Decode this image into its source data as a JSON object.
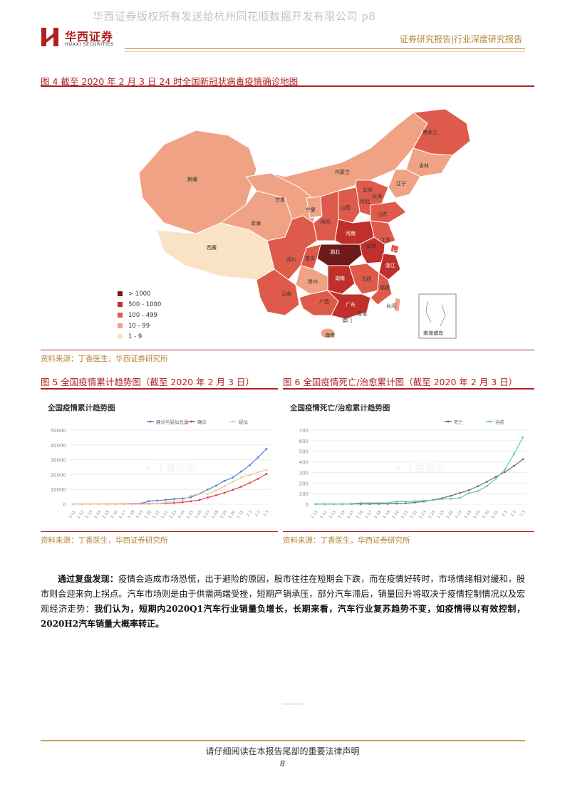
{
  "watermark": "华西证券版权所有发送给杭州同花顺数据开发有限公司 p8",
  "brand": {
    "name_cn": "华西证券",
    "name_en": "HUAXI SECURITIES",
    "color": "#b02020"
  },
  "header": {
    "right_text": "证券研究报告|行业深度研究报告"
  },
  "figure4": {
    "title": "图 4 截至 2020 年 2 月 3 日 24 时全国新冠状病毒疫情确诊地图",
    "source": "资料来源：丁香医生，华西证券研究所",
    "legend": [
      {
        "label": "> 1000",
        "color": "#6e1a1a"
      },
      {
        "label": "500 - 1000",
        "color": "#c0302b"
      },
      {
        "label": "100 - 499",
        "color": "#de5a4a"
      },
      {
        "label": "10 - 99",
        "color": "#f0a285"
      },
      {
        "label": "1 - 9",
        "color": "#fae3c4"
      }
    ],
    "provinces": {
      "heilongjiang": "黑龙江",
      "jilin": "吉林",
      "liaoning": "辽宁",
      "neimenggu": "内蒙古",
      "beijing": "北京",
      "tianjin": "天津",
      "hebei": "河北",
      "shanxi": "山西",
      "shandong": "山东",
      "xinjiang": "新疆",
      "gansu": "甘肃",
      "ningxia": "宁夏",
      "shaanxi": "陕西",
      "qinghai": "青海",
      "xizang": "西藏",
      "sichuan": "四川",
      "chongqing": "重庆",
      "hubei": "湖北",
      "henan": "河南",
      "anhui": "安徽",
      "jiangsu": "江苏",
      "shanghai": "上海",
      "zhejiang": "浙江",
      "hunan": "湖南",
      "jiangxi": "江西",
      "fujian": "福建",
      "guizhou": "贵州",
      "yunnan": "云南",
      "guangxi": "广西",
      "guangdong": "广东",
      "taiwan": "台湾",
      "xianggang": "香港",
      "aomen": "澳门",
      "hainan": "海南",
      "nanhai": "南海诸岛"
    }
  },
  "figure5": {
    "title": "图 5 全国疫情累计趋势图（截至 2020 年 2 月 3 日）",
    "source": "资料来源：丁香医生，华西证券研究所",
    "watermark_label": "丁香医生"
  },
  "figure6": {
    "title": "图 6 全国疫情死亡/治愈累计图（截至 2020 年 2 月 3 日）",
    "source": "资料来源：丁香医生，华西证券研究所",
    "watermark_label": "丁香医生"
  },
  "chart_data": [
    {
      "type": "line",
      "title": "全国疫情累计趋势图",
      "categories": [
        "1-11",
        "1-13",
        "1-15",
        "1-17",
        "1-19",
        "1-21",
        "1-23",
        "1-25",
        "1-27",
        "1-29",
        "1-31",
        "2-2"
      ],
      "x": [
        "1-11",
        "1-12",
        "1-13",
        "1-14",
        "1-15",
        "1-16",
        "1-17",
        "1-18",
        "1-19",
        "1-20",
        "1-21",
        "1-22",
        "1-23",
        "1-24",
        "1-25",
        "1-26",
        "1-27",
        "1-28",
        "1-29",
        "1-30",
        "1-31",
        "2-1",
        "2-2",
        "2-3"
      ],
      "ylim": [
        0,
        50000
      ],
      "yticks": [
        0,
        10000,
        20000,
        30000,
        40000,
        50000
      ],
      "series": [
        {
          "name": "确诊与疑似总量",
          "color": "#4a86d8",
          "values": [
            41,
            41,
            41,
            41,
            45,
            62,
            198,
            291,
            440,
            2041,
            2450,
            2919,
            3474,
            3829,
            4640,
            7053,
            9839,
            12487,
            15776,
            18000,
            22076,
            26326,
            31566,
            37342
          ]
        },
        {
          "name": "确诊",
          "color": "#d9444a",
          "values": [
            41,
            41,
            41,
            41,
            41,
            45,
            62,
            121,
            198,
            291,
            440,
            571,
            830,
            1287,
            1975,
            2744,
            4515,
            5974,
            7711,
            9692,
            11791,
            14380,
            17205,
            20438
          ]
        },
        {
          "name": "疑似",
          "color": "#f3c59b",
          "values": [
            0,
            0,
            0,
            0,
            0,
            0,
            0,
            0,
            0,
            54,
            393,
            1072,
            1965,
            2684,
            5794,
            6973,
            6973,
            9239,
            12167,
            15238,
            17988,
            19544,
            21558,
            23214
          ]
        }
      ]
    },
    {
      "type": "line",
      "title": "全国疫情死亡/治愈累计趋势图",
      "categories": [
        "1-11",
        "1-13",
        "1-15",
        "1-17",
        "1-19",
        "1-21",
        "1-23",
        "1-25",
        "1-27",
        "1-29",
        "1-31",
        "2-2"
      ],
      "x": [
        "1-11",
        "1-12",
        "1-13",
        "1-14",
        "1-15",
        "1-16",
        "1-17",
        "1-18",
        "1-19",
        "1-20",
        "1-21",
        "1-22",
        "1-23",
        "1-24",
        "1-25",
        "1-26",
        "1-27",
        "1-28",
        "1-29",
        "1-30",
        "1-31",
        "2-1",
        "2-2",
        "2-3"
      ],
      "ylim": [
        0,
        700
      ],
      "yticks": [
        0,
        100,
        200,
        300,
        400,
        500,
        600,
        700
      ],
      "series": [
        {
          "name": "死亡",
          "color": "#707070",
          "values": [
            1,
            1,
            1,
            1,
            2,
            2,
            2,
            3,
            3,
            6,
            9,
            17,
            25,
            41,
            56,
            80,
            106,
            132,
            170,
            213,
            259,
            304,
            361,
            425
          ]
        },
        {
          "name": "治愈",
          "color": "#5fcfa5",
          "values": [
            0,
            0,
            0,
            0,
            5,
            12,
            12,
            12,
            12,
            25,
            25,
            28,
            34,
            38,
            49,
            51,
            60,
            103,
            124,
            171,
            243,
            328,
            475,
            632
          ]
        }
      ]
    }
  ],
  "body": {
    "lead": "通过复盘发现：",
    "text1": "疫情会造成市场恐慌，出于避险的原因，股市往往在短期会下跌，而在疫情好转时，市场情绪相对缓和，股市则会迎来向上拐点。汽车市场则是由于供需两端受挫，短期产销承压，部分汽车滞后，销量回升将取决于疫情控制情况以及宏观经济走势：",
    "conclusion": "我们认为，短期内2020Q1汽车行业销量负增长，长期来看，汽车行业复苏趋势不变，如疫情得以有效控制，2020H2汽车销量大概率转正。"
  },
  "footer": {
    "dashes": "----------",
    "disclaimer": "请仔细阅读在本报告尾部的重要法律声明",
    "page": "8"
  }
}
